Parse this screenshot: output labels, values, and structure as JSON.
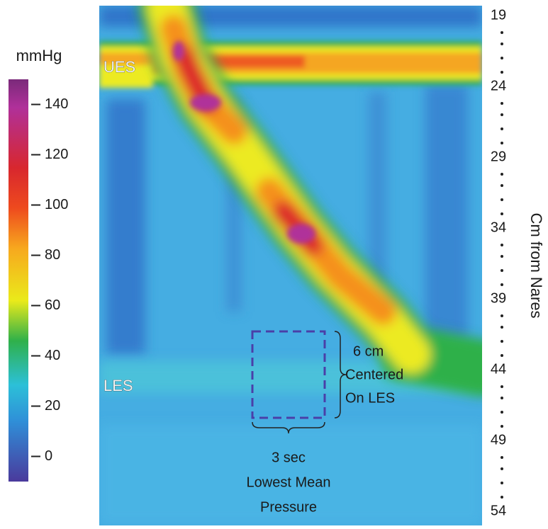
{
  "colorbar": {
    "unit": "mmHg",
    "lim": [
      -10,
      150
    ],
    "ticks": [
      0,
      20,
      40,
      60,
      80,
      100,
      120,
      140
    ]
  },
  "depth_axis": {
    "label": "Cm from Nares",
    "lim": [
      19,
      54
    ],
    "ticks": [
      19,
      24,
      29,
      34,
      39,
      44,
      49,
      54
    ]
  },
  "annotations": {
    "ues": "UES",
    "les": "LES",
    "box_height": [
      "6 cm",
      "Centered",
      "On LES"
    ],
    "box_width": [
      "3 sec",
      "Lowest Mean",
      "Pressure"
    ]
  }
}
